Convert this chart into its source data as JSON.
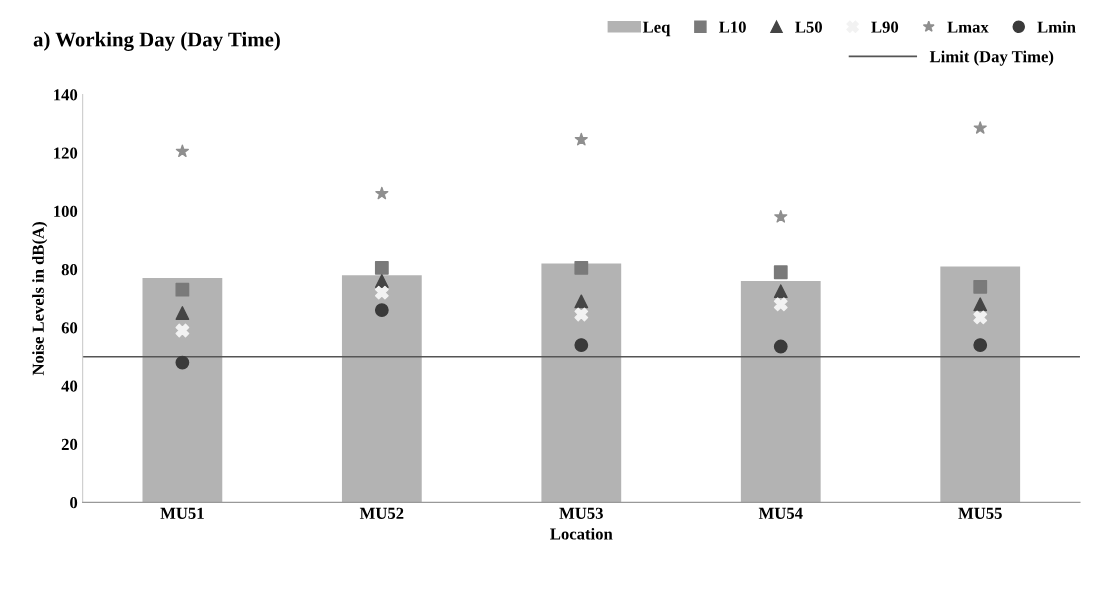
{
  "chart_data": {
    "type": "bar",
    "title": "a) Working Day (Day Time)",
    "xlabel": "Location",
    "ylabel": "Noise Levels in dB(A)",
    "categories": [
      "MU51",
      "MU52",
      "MU53",
      "MU54",
      "MU55"
    ],
    "series": [
      {
        "name": "Leq",
        "color": "#b3b3b3",
        "values": [
          77,
          78,
          82,
          76,
          81
        ]
      },
      {
        "name": "L10",
        "type": "scatter",
        "marker": "square",
        "color": "#7a7a7a",
        "values": [
          73,
          80.5,
          80.5,
          79,
          74
        ]
      },
      {
        "name": "L50",
        "type": "scatter",
        "marker": "triangle",
        "color": "#454545",
        "values": [
          65,
          76,
          69,
          72.5,
          68
        ]
      },
      {
        "name": "L90",
        "type": "scatter",
        "marker": "cross",
        "color": "#f2f2f2",
        "values": [
          59,
          72,
          64.5,
          68,
          63.5
        ]
      },
      {
        "name": "Lmax",
        "type": "scatter",
        "marker": "star",
        "color": "#8f8f8f",
        "values": [
          120.5,
          106,
          124.5,
          98,
          128.5
        ]
      },
      {
        "name": "Lmin",
        "type": "scatter",
        "marker": "circle",
        "color": "#3a3a3a",
        "values": [
          48,
          66,
          54,
          53.5,
          54
        ]
      }
    ],
    "ref_lines": [
      {
        "axis": "y",
        "value": 50,
        "label": "Limit (Day Time)",
        "color": "#555555"
      }
    ],
    "ylim": [
      0,
      140
    ],
    "yticks": [
      0,
      20,
      40,
      60,
      80,
      100,
      120,
      140
    ],
    "legend": "top right",
    "grid": false
  }
}
